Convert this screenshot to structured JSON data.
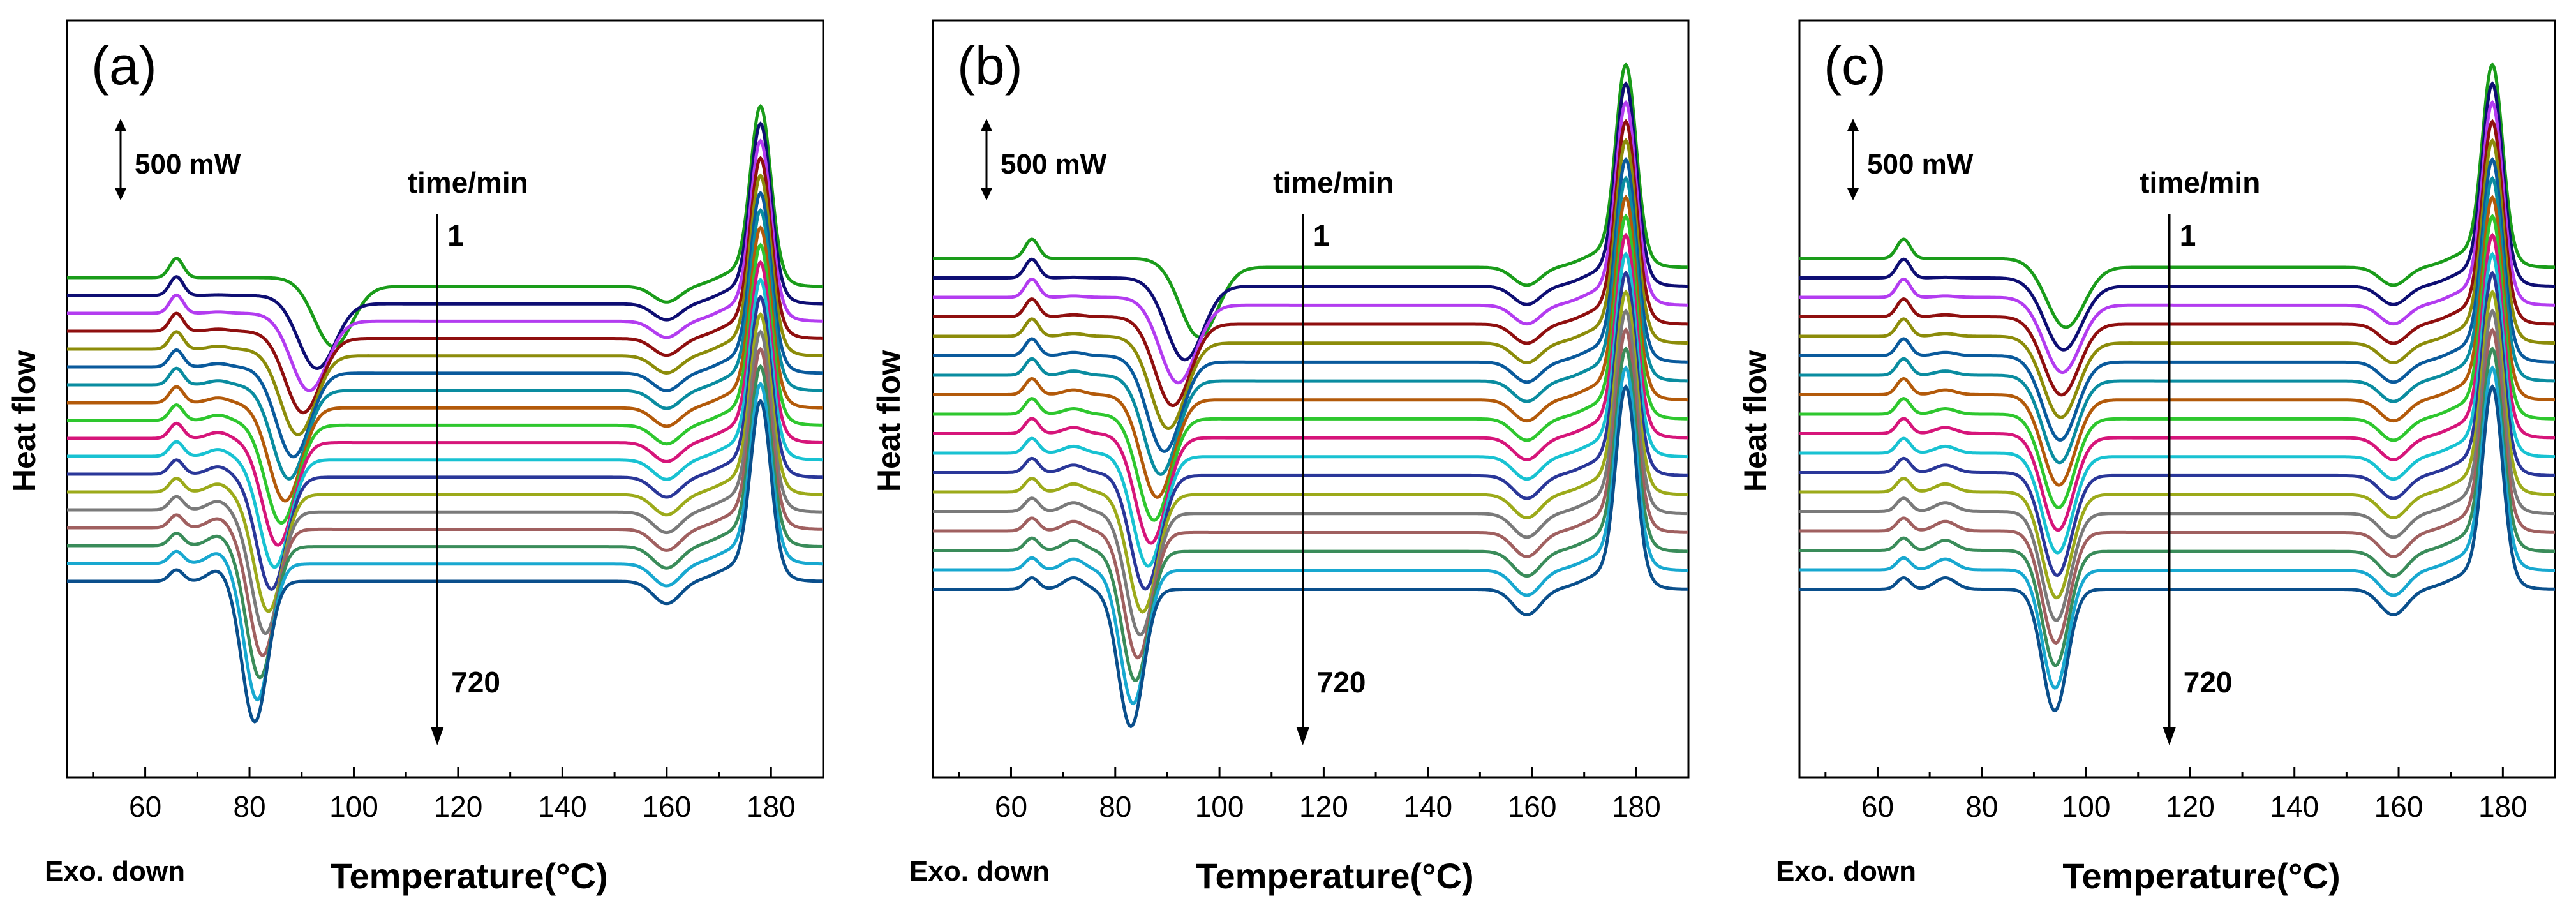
{
  "figure": {
    "y_axis_label": "Heat flow",
    "x_axis_label": "Temperature(°C)",
    "exo_label": "Exo. down",
    "scale_label": "500 mW",
    "time_title": "time/min",
    "time_start": "1",
    "time_end": "720"
  },
  "series_colors": [
    "#1a9c1a",
    "#0e0e73",
    "#b33cf0",
    "#8f0f0f",
    "#8c8c0a",
    "#0a5a9c",
    "#0a8ca0",
    "#b35a0a",
    "#2ec72e",
    "#d6157a",
    "#18c2d2",
    "#2a3799",
    "#9caa1a",
    "#7a7a7a",
    "#a06060",
    "#3a8c5a",
    "#18a8d0",
    "#0a4f8c"
  ],
  "chart_data": [
    {
      "type": "line",
      "panel_label": "(a)",
      "title": "",
      "xlabel": "Temperature(°C)",
      "ylabel": "Heat flow",
      "xlim": [
        45,
        190
      ],
      "xticks": [
        60,
        80,
        100,
        120,
        140,
        160,
        180
      ],
      "legend": "none",
      "series_count": 18,
      "series_order": "time 1 min (top) to 720 min (bottom)",
      "features_degC": {
        "cold_crystallization_peak_range": [
          81,
          96
        ],
        "upper_melting_trough": 160,
        "melting_peak": 178,
        "low_temperature_exotherm": 66
      }
    },
    {
      "type": "line",
      "panel_label": "(b)",
      "title": "",
      "xlabel": "Temperature(°C)",
      "ylabel": "Heat flow",
      "xlim": [
        45,
        190
      ],
      "xticks": [
        60,
        80,
        100,
        120,
        140,
        160,
        180
      ],
      "legend": "none",
      "series_count": 18,
      "series_order": "time 1 min (top) to 720 min (bottom)",
      "features_degC": {
        "cold_crystallization_peak_range": [
          83,
          96
        ],
        "upper_melting_trough": 159,
        "melting_peak": 178,
        "low_temperature_exotherm": 64
      }
    },
    {
      "type": "line",
      "panel_label": "(c)",
      "title": "",
      "xlabel": "Temperature(°C)",
      "ylabel": "Heat flow",
      "xlim": [
        45,
        190
      ],
      "xticks": [
        60,
        80,
        100,
        120,
        140,
        160,
        180
      ],
      "legend": "none",
      "series_count": 18,
      "series_order": "time 1 min (top) to 720 min (bottom)",
      "features_degC": {
        "cold_crystallization_peak_range": [
          94,
          96
        ],
        "upper_melting_trough": 159,
        "melting_peak": 178,
        "low_temperature_exotherm": 65
      }
    }
  ]
}
